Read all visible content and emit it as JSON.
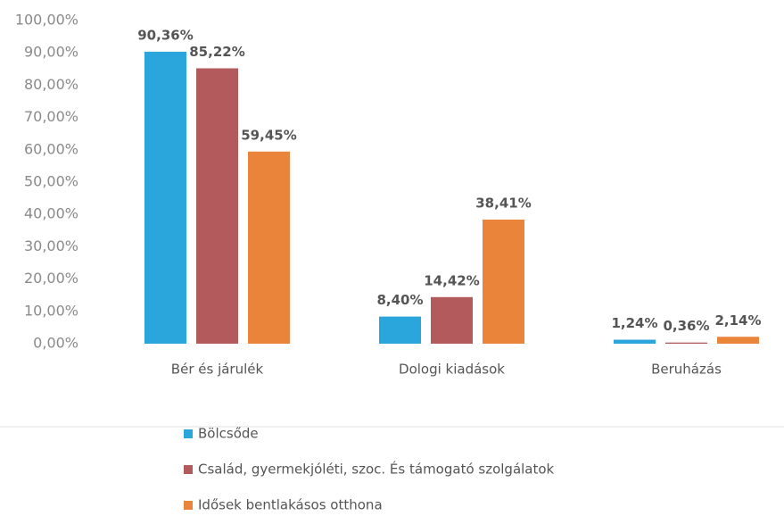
{
  "chart_data": {
    "type": "bar",
    "categories": [
      "Bér és járulék",
      "Dologi kiadások",
      "Beruházás"
    ],
    "series": [
      {
        "name": "Bölcsőde",
        "color": "#2ba6dc",
        "values": [
          90.36,
          8.4,
          1.24
        ],
        "value_labels": [
          "90,36%",
          "8,40%",
          "1,24%"
        ]
      },
      {
        "name": "Család, gyermekjóléti, szoc. És támogató szolgálatok",
        "color": "#b35a5c",
        "values": [
          85.22,
          14.42,
          0.36
        ],
        "value_labels": [
          "85,22%",
          "14,42%",
          "0,36%"
        ]
      },
      {
        "name": "Idősek bentlakásos otthona",
        "color": "#ea843a",
        "values": [
          59.45,
          38.41,
          2.14
        ],
        "value_labels": [
          "59,45%",
          "38,41%",
          "2,14%"
        ]
      }
    ],
    "ylim": [
      0,
      100
    ],
    "yticks": [
      {
        "value": 0,
        "label": "0,00%"
      },
      {
        "value": 10,
        "label": "10,00%"
      },
      {
        "value": 20,
        "label": "20,00%"
      },
      {
        "value": 30,
        "label": "30,00%"
      },
      {
        "value": 40,
        "label": "40,00%"
      },
      {
        "value": 50,
        "label": "50,00%"
      },
      {
        "value": 60,
        "label": "60,00%"
      },
      {
        "value": 70,
        "label": "70,00%"
      },
      {
        "value": 80,
        "label": "80,00%"
      },
      {
        "value": 90,
        "label": "90,00%"
      },
      {
        "value": 100,
        "label": "100,00%"
      }
    ],
    "grid": false,
    "legend": "bottom"
  }
}
